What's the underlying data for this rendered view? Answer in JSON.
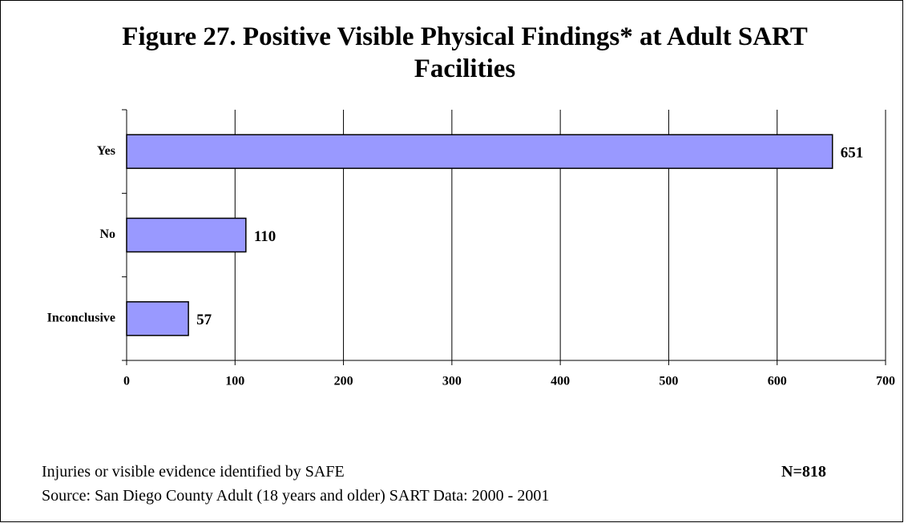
{
  "chart_data": {
    "type": "bar",
    "orientation": "horizontal",
    "title": "Figure 27. Positive Visible Physical Findings* at Adult SART Facilities",
    "categories": [
      "Yes",
      "No",
      "Inconclusive"
    ],
    "values": [
      651,
      110,
      57
    ],
    "color": "#9999ff",
    "xlim": [
      0,
      700
    ],
    "xticks": [
      0,
      100,
      200,
      300,
      400,
      500,
      600,
      700
    ],
    "grid": true,
    "notes": [
      "Injuries or visible evidence identified by SAFE",
      "Source: San Diego County Adult (18 years and older) SART Data: 2000 - 2001"
    ],
    "n_label": "N=818"
  }
}
